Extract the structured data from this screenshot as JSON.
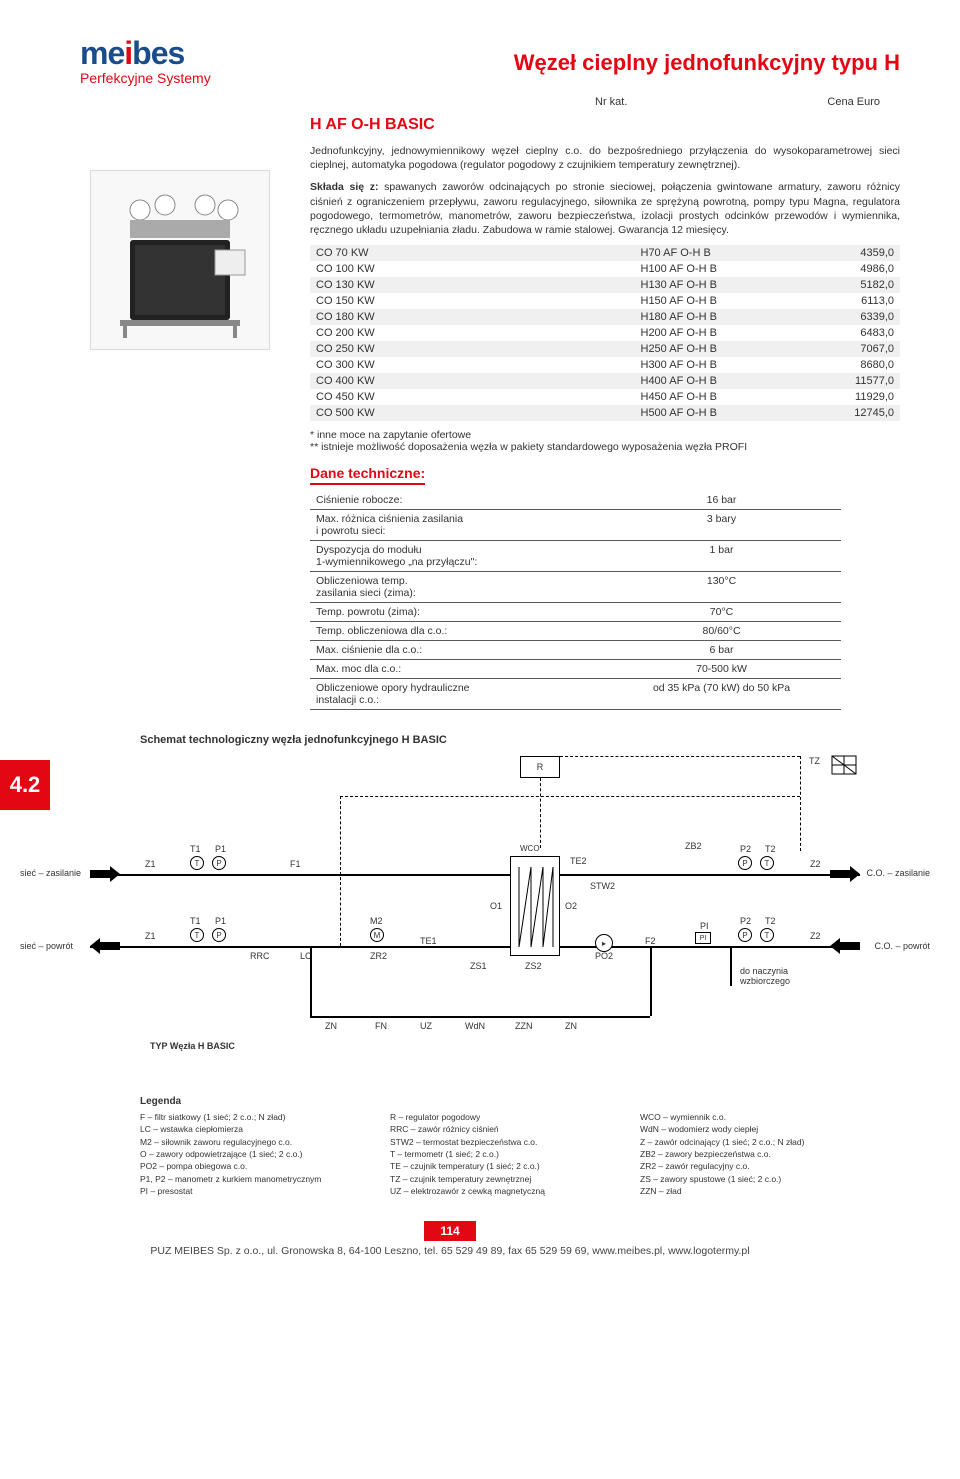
{
  "brand": {
    "name": "meibes",
    "tagline": "Perfekcyjne Systemy"
  },
  "page_title": "Węzeł cieplny jednofunkcyjny typu H",
  "header": {
    "col_kat": "Nr kat.",
    "col_cena": "Cena Euro"
  },
  "section_title": "H AF O-H BASIC",
  "intro_1": "Jednofunkcyjny, jednowymiennikowy węzeł cieplny c.o. do bezpośredniego przyłączenia do wysokoparametrowej sieci cieplnej, automatyka pogodowa (regulator pogodowy z czujnikiem temperatury zewnętrznej).",
  "intro_2": "Składa się z: spawanych zaworów odcinających po stronie sieciowej, połączenia gwintowane armatury, zaworu różnicy ciśnień z ograniczeniem przepływu, zaworu regulacyjnego, siłownika ze sprężyną powrotną, pompy typu Magna, regulatora pogodowego, termometrów, manometrów, zaworu bezpieczeństwa, izolacji prostych odcinków przewodów i wymiennika, ręcznego układu uzupełniania zładu. Zabudowa w ramie stalowej. Gwarancja 12 miesięcy.",
  "price_rows": [
    {
      "name": "CO 70 KW",
      "code": "H70 AF O-H B",
      "price": "4359,0"
    },
    {
      "name": "CO 100 KW",
      "code": "H100 AF O-H B",
      "price": "4986,0"
    },
    {
      "name": "CO 130 KW",
      "code": "H130 AF O-H B",
      "price": "5182,0"
    },
    {
      "name": "CO 150 KW",
      "code": "H150 AF O-H B",
      "price": "6113,0"
    },
    {
      "name": "CO 180 KW",
      "code": "H180 AF O-H B",
      "price": "6339,0"
    },
    {
      "name": "CO 200 KW",
      "code": "H200 AF O-H B",
      "price": "6483,0"
    },
    {
      "name": "CO 250 KW",
      "code": "H250 AF O-H B",
      "price": "7067,0"
    },
    {
      "name": "CO 300 KW",
      "code": "H300 AF O-H B",
      "price": "8680,0"
    },
    {
      "name": "CO 400 KW",
      "code": "H400 AF O-H B",
      "price": "11577,0"
    },
    {
      "name": "CO 450 KW",
      "code": "H450 AF O-H B",
      "price": "11929,0"
    },
    {
      "name": "CO 500 KW",
      "code": "H500 AF O-H B",
      "price": "12745,0"
    }
  ],
  "note_1": "* inne moce na zapytanie ofertowe",
  "note_2": "** istnieje możliwość doposażenia węzła w pakiety standardowego wyposażenia węzła PROFI",
  "dane_title": "Dane techniczne:",
  "tech_rows": [
    {
      "k": "Ciśnienie robocze:",
      "v": "16 bar"
    },
    {
      "k": "Max. różnica ciśnienia zasilania\ni powrotu sieci:",
      "v": "3 bary"
    },
    {
      "k": "Dyspozycja do modułu\n1-wymiennikowego „na przyłączu\":",
      "v": "1 bar"
    },
    {
      "k": "Obliczeniowa temp.\nzasilania sieci (zima):",
      "v": "130°C"
    },
    {
      "k": "Temp. powrotu (zima):",
      "v": "70°C"
    },
    {
      "k": "Temp. obliczeniowa dla c.o.:",
      "v": "80/60°C"
    },
    {
      "k": "Max. ciśnienie dla c.o.:",
      "v": "6 bar"
    },
    {
      "k": "Max. moc dla c.o.:",
      "v": "70-500 kW"
    },
    {
      "k": "Obliczeniowe opory hydrauliczne\ninstalacji c.o.:",
      "v": "od 35 kPa (70 kW) do 50 kPa"
    }
  ],
  "schema_title": "Schemat technologiczny węzła jednofunkcyjnego H BASIC",
  "tab_label": "4.2",
  "schema": {
    "labels": {
      "siec_zasilanie": "sieć – zasilanie",
      "siec_powrot": "sieć – powrót",
      "co_zasilanie": "C.O. – zasilanie",
      "co_powrot": "C.O. – powrót",
      "do_naczynia": "do naczynia\nwzbiorczego",
      "typ": "TYP Węzła H BASIC",
      "R": "R",
      "TZ": "TZ",
      "T1": "T1",
      "P1": "P1",
      "T2": "T2",
      "P2": "P2",
      "Z1": "Z1",
      "Z2": "Z2",
      "F1": "F1",
      "F2": "F2",
      "M2": "M2",
      "RRC": "RRC",
      "LC": "LC",
      "TE1": "TE1",
      "TE2": "TE2",
      "ZR2": "ZR2",
      "ZS1": "ZS1",
      "ZS2": "ZS2",
      "O1": "O1",
      "O2": "O2",
      "STW2": "STW2",
      "WCO": "WCO",
      "PO2": "PO2",
      "PI": "PI",
      "ZB2": "ZB2",
      "ZN": "ZN",
      "FN": "FN",
      "UZ": "UZ",
      "WdN": "WdN",
      "ZZN": "ZZN"
    }
  },
  "legend_title": "Legenda",
  "legend": {
    "col1": [
      "F – filtr siatkowy (1 sieć; 2 c.o.; N zład)",
      "LC – wstawka ciepłomierza",
      "M2 – siłownik zaworu regulacyjnego c.o.",
      "O – zawory odpowietrzające (1 sieć; 2 c.o.)",
      "PO2 – pompa obiegowa c.o.",
      "P1, P2 – manometr z kurkiem manometrycznym",
      "PI – presostat"
    ],
    "col2": [
      "R – regulator pogodowy",
      "RRC – zawór różnicy ciśnień",
      "STW2 – termostat bezpieczeństwa c.o.",
      "T – termometr (1 sieć; 2 c.o.)",
      "TE – czujnik temperatury (1 sieć; 2 c.o.)",
      "TZ – czujnik temperatury zewnętrznej",
      "UZ – elektrozawór z cewką magnetyczną"
    ],
    "col3": [
      "WCO – wymiennik c.o.",
      "WdN – wodomierz wody ciepłej",
      "Z – zawór odcinający (1 sieć; 2 c.o.; N zład)",
      "ZB2 – zawory bezpieczeństwa c.o.",
      "ZR2 – zawór regulacyjny c.o.",
      "ZS – zawory spustowe (1 sieć; 2 c.o.)",
      "ZZN – zład"
    ]
  },
  "page_number": "114",
  "footer_text": "PUZ MEIBES Sp. z o.o., ul. Gronowska 8, 64-100 Leszno, tel. 65 529 49 89, fax 65 529 59 69, www.meibes.pl, www.logotermy.pl",
  "colors": {
    "brand_red": "#e30613",
    "brand_blue": "#1a4b8a",
    "row_shade": "#f0f0f0",
    "text": "#333333",
    "rule": "#5a5a5a",
    "bg": "#ffffff"
  }
}
